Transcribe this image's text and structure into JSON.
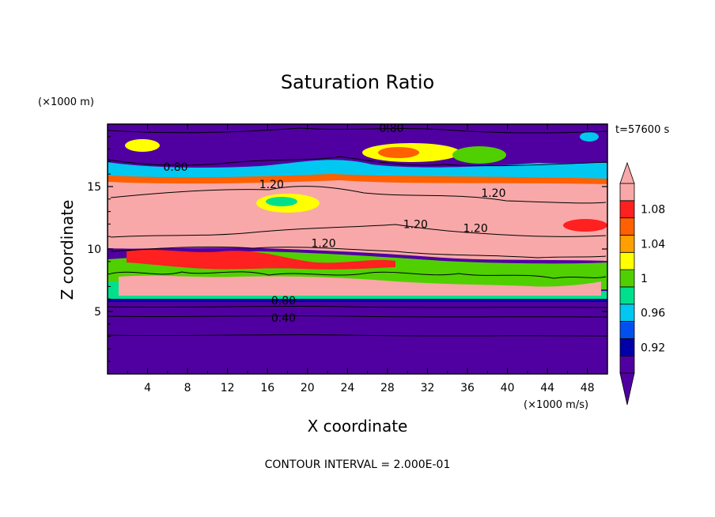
{
  "chart_data": {
    "type": "heatmap",
    "title": "Saturation Ratio",
    "xlabel": "X coordinate",
    "ylabel": "Z coordinate",
    "x_units": "(×1000 m/s)",
    "y_units": "(×1000 m)",
    "time_label": "t=57600 s",
    "footer": "CONTOUR INTERVAL = 2.000E-01",
    "xlim": [
      0,
      50
    ],
    "ylim": [
      0,
      20
    ],
    "x_ticks": [
      4,
      8,
      12,
      16,
      20,
      24,
      28,
      32,
      36,
      40,
      44,
      48
    ],
    "y_ticks": [
      5,
      10,
      15
    ],
    "colorbar": {
      "labels": [
        "1.08",
        "1.04",
        "1",
        "0.96",
        "0.92"
      ],
      "levels": [
        0.92,
        0.94,
        0.96,
        0.98,
        1.0,
        1.02,
        1.04,
        1.06,
        1.08
      ],
      "colors": [
        "#5000a0",
        "#0000a8",
        "#0050f0",
        "#00c8f0",
        "#00e08c",
        "#50d000",
        "#ffff00",
        "#ffa000",
        "#ff6000",
        "#ff2020",
        "#f8a8a8"
      ]
    },
    "contour_labels": [
      {
        "text": "0.80",
        "x": 28.4,
        "z": 19.5
      },
      {
        "text": "0.80",
        "x": 6.8,
        "z": 16.4
      },
      {
        "text": "1.20",
        "x": 16.4,
        "z": 15.0
      },
      {
        "text": "1.20",
        "x": 38.6,
        "z": 14.3
      },
      {
        "text": "1.20",
        "x": 30.8,
        "z": 11.8
      },
      {
        "text": "1.20",
        "x": 36.8,
        "z": 11.5
      },
      {
        "text": "1.20",
        "x": 21.6,
        "z": 10.3
      },
      {
        "text": "0.80",
        "x": 17.6,
        "z": 5.7
      },
      {
        "text": "0.40",
        "x": 17.6,
        "z": 4.3
      }
    ]
  }
}
